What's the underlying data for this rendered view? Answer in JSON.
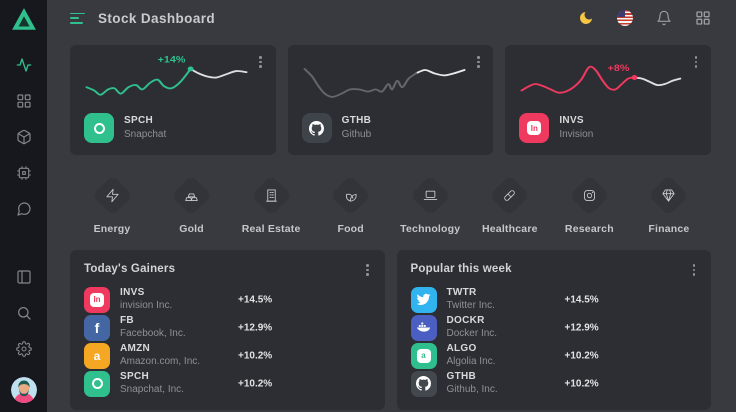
{
  "colors": {
    "accent_green": "#2fc08d",
    "accent_pink": "#ef395e",
    "bg": "#393a40",
    "card": "#2d2e33",
    "sidebar": "#17181d",
    "moon_yellow": "#f6c645"
  },
  "sidebar": {
    "logo": "brand-triangle-logo",
    "nav": [
      "activity",
      "grid",
      "cube",
      "chip",
      "chat"
    ],
    "bottom": [
      "panel-columns",
      "search",
      "settings"
    ],
    "avatar": "user-avatar"
  },
  "header": {
    "title": "Stock Dashboard",
    "actions": [
      "dark-mode-moon",
      "language-flag-us",
      "notifications-bell",
      "apps-grid"
    ]
  },
  "cards": [
    {
      "ticker": "SPCH",
      "company": "Snapchat",
      "change": "+14%",
      "accent": "#2fc08d",
      "icon_bg": "#2fc08d",
      "glyph": "snapchat",
      "spark": {
        "line": "#2fc08d",
        "tail": "#dddee0",
        "tail_from": 14,
        "dot": 14,
        "label": "+14%",
        "points": [
          [
            2,
            29
          ],
          [
            8,
            32
          ],
          [
            13,
            36
          ],
          [
            19,
            31
          ],
          [
            24,
            30
          ],
          [
            29,
            35
          ],
          [
            35,
            29
          ],
          [
            41,
            27
          ],
          [
            46,
            31
          ],
          [
            52,
            25
          ],
          [
            58,
            22
          ],
          [
            63,
            28
          ],
          [
            69,
            30
          ],
          [
            76,
            24
          ],
          [
            84,
            12
          ],
          [
            90,
            16
          ],
          [
            97,
            19
          ],
          [
            104,
            20
          ],
          [
            112,
            17
          ],
          [
            120,
            14
          ],
          [
            128,
            15
          ]
        ]
      }
    },
    {
      "ticker": "GTHB",
      "company": "Github",
      "change": "",
      "accent": "#6a6d73",
      "icon_bg": "#3f434a",
      "glyph": "github",
      "spark": {
        "line": "#63666c",
        "tail": "#e9eaeb",
        "tail_from": 16,
        "dot": -1,
        "label": "",
        "points": [
          [
            2,
            12
          ],
          [
            8,
            19
          ],
          [
            13,
            28
          ],
          [
            18,
            35
          ],
          [
            24,
            38
          ],
          [
            31,
            35
          ],
          [
            38,
            31
          ],
          [
            45,
            31
          ],
          [
            52,
            33
          ],
          [
            58,
            31
          ],
          [
            63,
            33
          ],
          [
            68,
            26
          ],
          [
            71,
            31
          ],
          [
            75,
            23
          ],
          [
            79,
            29
          ],
          [
            84,
            21
          ],
          [
            90,
            16
          ],
          [
            97,
            13
          ],
          [
            104,
            16
          ],
          [
            112,
            18
          ],
          [
            120,
            16
          ],
          [
            128,
            13
          ]
        ]
      }
    },
    {
      "ticker": "INVS",
      "company": "Invision",
      "change": "+8%",
      "accent": "#ef395e",
      "icon_bg": "#ef395e",
      "glyph": "invision",
      "spark": {
        "line": "#ef395e",
        "tail": "#dddee0",
        "tail_from": 17,
        "dot": 17,
        "label": "+8%",
        "points": [
          [
            2,
            32
          ],
          [
            8,
            28
          ],
          [
            13,
            26
          ],
          [
            19,
            28
          ],
          [
            25,
            31
          ],
          [
            31,
            34
          ],
          [
            37,
            33
          ],
          [
            43,
            29
          ],
          [
            49,
            22
          ],
          [
            54,
            12
          ],
          [
            57,
            10
          ],
          [
            61,
            14
          ],
          [
            66,
            23
          ],
          [
            71,
            30
          ],
          [
            76,
            31
          ],
          [
            81,
            26
          ],
          [
            86,
            21
          ],
          [
            91,
            20
          ],
          [
            97,
            21
          ],
          [
            103,
            24
          ],
          [
            109,
            27
          ],
          [
            115,
            26
          ],
          [
            121,
            23
          ],
          [
            127,
            21
          ]
        ]
      }
    }
  ],
  "categories": [
    {
      "label": "Energy",
      "icon": "energy-icon"
    },
    {
      "label": "Gold",
      "icon": "gold-icon"
    },
    {
      "label": "Real Estate",
      "icon": "real-estate-icon"
    },
    {
      "label": "Food",
      "icon": "food-icon"
    },
    {
      "label": "Technology",
      "icon": "technology-icon"
    },
    {
      "label": "Healthcare",
      "icon": "healthcare-icon"
    },
    {
      "label": "Research",
      "icon": "research-icon"
    },
    {
      "label": "Finance",
      "icon": "finance-icon"
    }
  ],
  "panels": [
    {
      "title": "Today's Gainers",
      "rows": [
        {
          "ticker": "INVS",
          "company": "invision Inc.",
          "change": "+14.5%",
          "color": "#ef395e",
          "glyph": "invision"
        },
        {
          "ticker": "FB",
          "company": "Facebook, Inc.",
          "change": "+12.9%",
          "color": "#4467a3",
          "glyph": "facebook"
        },
        {
          "ticker": "AMZN",
          "company": "Amazon.com, Inc.",
          "change": "+10.2%",
          "color": "#f5a623",
          "glyph": "amazon"
        },
        {
          "ticker": "SPCH",
          "company": "Snapchat, Inc.",
          "change": "+10.2%",
          "color": "#2fc08d",
          "glyph": "snapchat"
        }
      ]
    },
    {
      "title": "Popular this week",
      "rows": [
        {
          "ticker": "TWTR",
          "company": "Twitter Inc.",
          "change": "+14.5%",
          "color": "#30b3ee",
          "glyph": "twitter"
        },
        {
          "ticker": "DOCKR",
          "company": "Docker Inc.",
          "change": "+12.9%",
          "color": "#4a5fc1",
          "glyph": "docker"
        },
        {
          "ticker": "ALGO",
          "company": "Algolia Inc.",
          "change": "+10.2%",
          "color": "#2fbe8d",
          "glyph": "algolia"
        },
        {
          "ticker": "GTHB",
          "company": "Github, Inc.",
          "change": "+10.2%",
          "color": "#43474e",
          "glyph": "github"
        }
      ]
    }
  ]
}
